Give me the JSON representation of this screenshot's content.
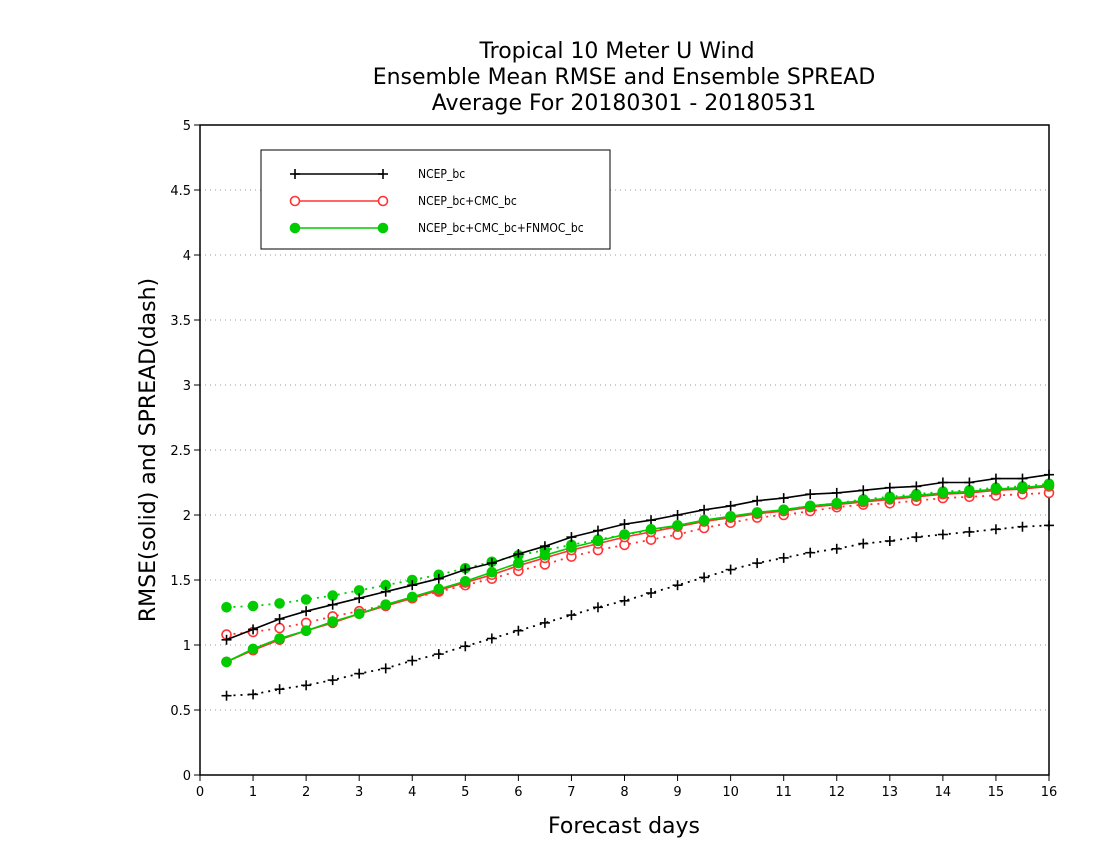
{
  "chart_data": {
    "type": "line",
    "title_lines": [
      "Tropical 10 Meter U Wind",
      "Ensemble Mean RMSE and Ensemble SPREAD",
      "Average For 20180301 - 20180531"
    ],
    "xlabel": "Forecast days",
    "ylabel": "RMSE(solid) and SPREAD(dash)",
    "xlim": [
      0,
      16
    ],
    "ylim": [
      0,
      5
    ],
    "x_ticks": [
      "0",
      "1",
      "2",
      "3",
      "4",
      "5",
      "6",
      "7",
      "8",
      "9",
      "10",
      "11",
      "12",
      "13",
      "14",
      "15",
      "16"
    ],
    "y_ticks": [
      "0",
      "0.5",
      "1",
      "1.5",
      "2",
      "2.5",
      "3",
      "3.5",
      "4",
      "4.5",
      "5"
    ],
    "grid": "horizontal dotted",
    "legend_position": "top-left",
    "x": [
      0.5,
      1,
      1.5,
      2,
      2.5,
      3,
      3.5,
      4,
      4.5,
      5,
      5.5,
      6,
      6.5,
      7,
      7.5,
      8,
      8.5,
      9,
      9.5,
      10,
      10.5,
      11,
      11.5,
      12,
      12.5,
      13,
      13.5,
      14,
      14.5,
      15,
      15.5,
      16
    ],
    "series": [
      {
        "name": "NCEP_bc",
        "color": "#000000",
        "marker": "plus",
        "rmse": [
          1.04,
          1.12,
          1.2,
          1.26,
          1.31,
          1.36,
          1.41,
          1.46,
          1.51,
          1.58,
          1.63,
          1.7,
          1.76,
          1.83,
          1.88,
          1.93,
          1.96,
          2.0,
          2.04,
          2.07,
          2.11,
          2.13,
          2.16,
          2.17,
          2.19,
          2.21,
          2.22,
          2.25,
          2.25,
          2.28,
          2.28,
          2.31
        ],
        "spread": [
          0.61,
          0.62,
          0.66,
          0.69,
          0.73,
          0.78,
          0.82,
          0.88,
          0.93,
          0.99,
          1.05,
          1.11,
          1.17,
          1.23,
          1.29,
          1.34,
          1.4,
          1.46,
          1.52,
          1.58,
          1.63,
          1.67,
          1.71,
          1.74,
          1.78,
          1.8,
          1.83,
          1.85,
          1.87,
          1.89,
          1.91,
          1.92
        ]
      },
      {
        "name": "NCEP_bc+CMC_bc",
        "color": "#ff3333",
        "marker": "open-circle",
        "rmse": [
          0.87,
          0.96,
          1.04,
          1.11,
          1.17,
          1.24,
          1.3,
          1.36,
          1.42,
          1.48,
          1.54,
          1.61,
          1.67,
          1.73,
          1.78,
          1.83,
          1.87,
          1.91,
          1.95,
          1.98,
          2.01,
          2.03,
          2.06,
          2.08,
          2.1,
          2.12,
          2.14,
          2.16,
          2.17,
          2.19,
          2.2,
          2.22
        ],
        "spread": [
          1.08,
          1.1,
          1.13,
          1.17,
          1.22,
          1.26,
          1.31,
          1.36,
          1.41,
          1.46,
          1.51,
          1.57,
          1.62,
          1.68,
          1.73,
          1.77,
          1.81,
          1.85,
          1.9,
          1.94,
          1.98,
          2.0,
          2.03,
          2.06,
          2.08,
          2.09,
          2.11,
          2.13,
          2.14,
          2.15,
          2.16,
          2.17
        ]
      },
      {
        "name": "NCEP_bc+CMC_bc+FNMOC_bc",
        "color": "#00cc00",
        "marker": "filled-circle",
        "rmse": [
          0.87,
          0.97,
          1.05,
          1.11,
          1.18,
          1.24,
          1.31,
          1.37,
          1.43,
          1.49,
          1.56,
          1.63,
          1.69,
          1.75,
          1.8,
          1.85,
          1.89,
          1.92,
          1.96,
          1.99,
          2.02,
          2.04,
          2.07,
          2.09,
          2.11,
          2.13,
          2.15,
          2.17,
          2.18,
          2.2,
          2.21,
          2.23
        ],
        "spread": [
          1.29,
          1.3,
          1.32,
          1.35,
          1.38,
          1.42,
          1.46,
          1.5,
          1.54,
          1.59,
          1.64,
          1.69,
          1.73,
          1.77,
          1.81,
          1.85,
          1.88,
          1.92,
          1.95,
          1.98,
          2.01,
          2.04,
          2.07,
          2.09,
          2.12,
          2.14,
          2.16,
          2.18,
          2.19,
          2.21,
          2.22,
          2.24
        ]
      }
    ]
  }
}
